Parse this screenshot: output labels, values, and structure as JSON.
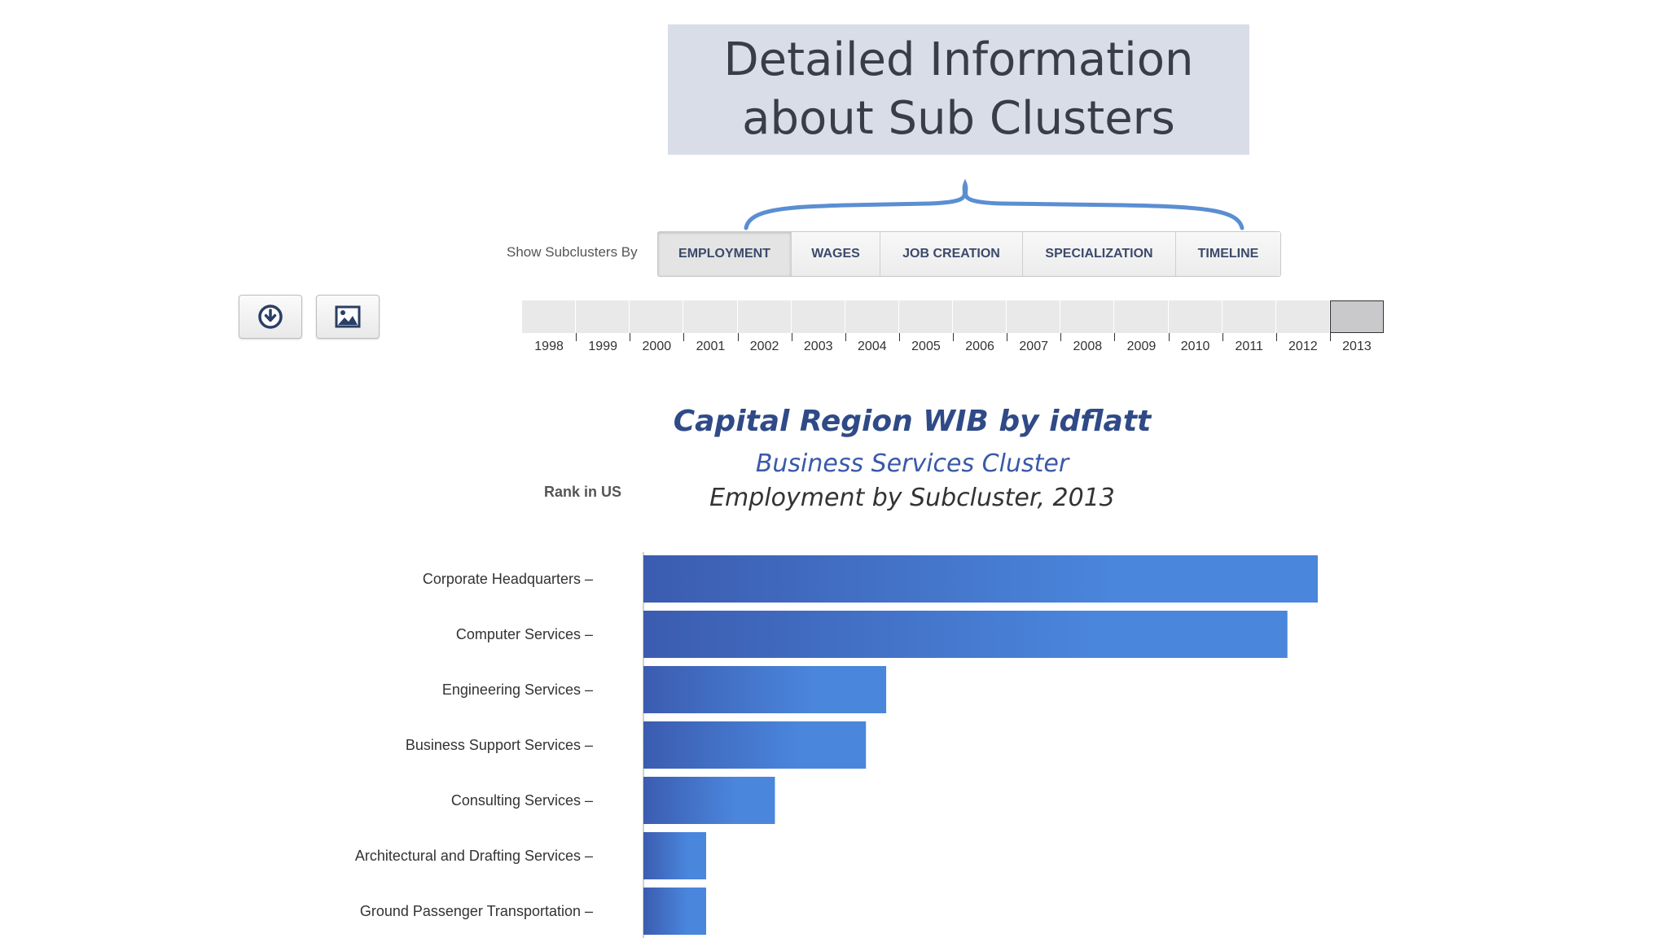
{
  "callout": {
    "line1": "Detailed Information",
    "line2": "about Sub Clusters"
  },
  "controls": {
    "show_label": "Show Subclusters By",
    "tabs": [
      {
        "label": "EMPLOYMENT",
        "active": true
      },
      {
        "label": "WAGES",
        "active": false
      },
      {
        "label": "JOB CREATION",
        "active": false
      },
      {
        "label": "SPECIALIZATION",
        "active": false
      },
      {
        "label": "TIMELINE",
        "active": false
      }
    ],
    "download_icon": "download-icon",
    "image_icon": "image-icon"
  },
  "timeline": {
    "years": [
      "1998",
      "1999",
      "2000",
      "2001",
      "2002",
      "2003",
      "2004",
      "2005",
      "2006",
      "2007",
      "2008",
      "2009",
      "2010",
      "2011",
      "2012",
      "2013"
    ],
    "selected": "2013"
  },
  "chart": {
    "rank_label": "Rank in US"
  },
  "chart_data": {
    "type": "bar",
    "orientation": "horizontal",
    "title": "Capital Region WIB by idflatt",
    "subtitle": "Business Services Cluster",
    "subtitle2": "Employment by Subcluster, 2013",
    "categories": [
      "Corporate Headquarters",
      "Computer Services",
      "Engineering Services",
      "Business Support Services",
      "Consulting Services",
      "Architectural and Drafting Services",
      "Ground Passenger Transportation"
    ],
    "values": [
      100,
      95.5,
      36,
      33,
      19.5,
      9.3,
      9.3
    ],
    "value_unit": "relative employment (% of largest bar)",
    "colors": {
      "bar_dark": "#3b5cb0",
      "bar_light": "#4a86dc"
    }
  }
}
